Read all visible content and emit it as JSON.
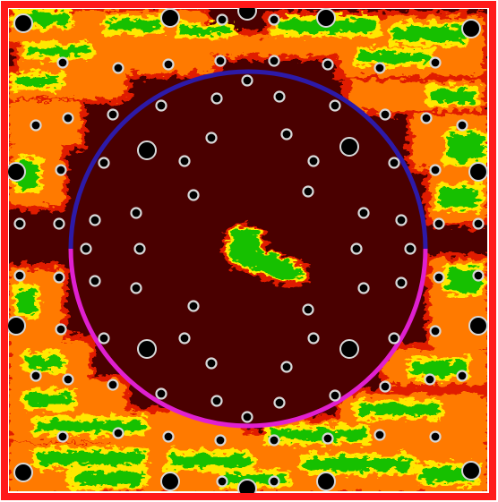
{
  "colors": {
    "frame": "#ff1a1a",
    "background_dark": "#4a0000",
    "hot_red": "#e01a00",
    "hot_orange": "#ff7a00",
    "hot_yellow": "#ffe800",
    "hot_green": "#18c000",
    "arc_upper": "#2d1aa8",
    "arc_lower": "#e020d0",
    "marker_fill": "#000000",
    "marker_ring": "#d8d8d8"
  },
  "marker_count": {
    "large": 18,
    "small": 82
  }
}
